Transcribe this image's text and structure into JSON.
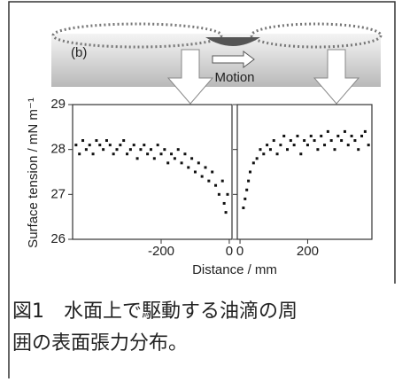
{
  "figure": {
    "label": "(b)",
    "motion": "Motion",
    "xlabel": "Distance / mm"
  },
  "chart_data": [
    {
      "type": "scatter",
      "ylabel": "Surface tension / mN m⁻¹",
      "color": "#111111",
      "xlim": [
        -460,
        8
      ],
      "ylim": [
        26,
        29
      ],
      "xticks": [
        -200,
        0
      ],
      "yticks": [
        26,
        27,
        28,
        29
      ],
      "x": [
        -450,
        -440,
        -430,
        -420,
        -410,
        -400,
        -390,
        -380,
        -370,
        -360,
        -350,
        -340,
        -330,
        -320,
        -310,
        -300,
        -290,
        -280,
        -270,
        -260,
        -250,
        -240,
        -230,
        -220,
        -210,
        -200,
        -190,
        -180,
        -170,
        -160,
        -150,
        -140,
        -130,
        -120,
        -110,
        -100,
        -90,
        -80,
        -70,
        -60,
        -50,
        -40,
        -30,
        -20,
        -15,
        -10,
        -5
      ],
      "values": [
        28.1,
        27.9,
        28.2,
        28.0,
        28.1,
        27.9,
        28.2,
        28.1,
        28.0,
        28.2,
        28.1,
        27.9,
        28.0,
        28.1,
        28.2,
        27.9,
        28.0,
        28.1,
        27.8,
        28.0,
        28.1,
        27.9,
        28.0,
        27.8,
        28.1,
        27.9,
        28.0,
        27.7,
        27.9,
        27.8,
        28.0,
        27.7,
        27.9,
        27.6,
        27.8,
        27.5,
        27.7,
        27.4,
        27.6,
        27.3,
        27.5,
        27.2,
        27.0,
        27.3,
        26.8,
        26.6,
        27.0
      ]
    },
    {
      "type": "scatter",
      "color": "#111111",
      "xlim": [
        -8,
        390
      ],
      "ylim": [
        26,
        29
      ],
      "xticks": [
        0,
        200
      ],
      "yticks": [
        26,
        27,
        28,
        29
      ],
      "x": [
        10,
        15,
        20,
        25,
        30,
        40,
        50,
        60,
        70,
        80,
        90,
        100,
        110,
        120,
        130,
        140,
        150,
        160,
        170,
        180,
        190,
        200,
        210,
        220,
        230,
        240,
        250,
        260,
        270,
        280,
        290,
        300,
        310,
        320,
        330,
        340,
        350,
        360,
        370,
        380
      ],
      "values": [
        26.7,
        26.9,
        27.1,
        27.3,
        27.5,
        27.7,
        27.8,
        28.0,
        27.9,
        28.1,
        28.0,
        28.2,
        27.9,
        28.1,
        28.3,
        28.0,
        28.2,
        28.1,
        28.3,
        27.9,
        28.2,
        28.1,
        28.3,
        28.2,
        28.0,
        28.3,
        28.1,
        28.4,
        28.2,
        28.0,
        28.3,
        28.2,
        28.4,
        28.1,
        28.3,
        28.2,
        28.0,
        28.3,
        28.4,
        28.1
      ]
    }
  ],
  "caption": [
    "図1　水面上で駆動する油滴の周",
    "囲の表面張力分布。"
  ]
}
